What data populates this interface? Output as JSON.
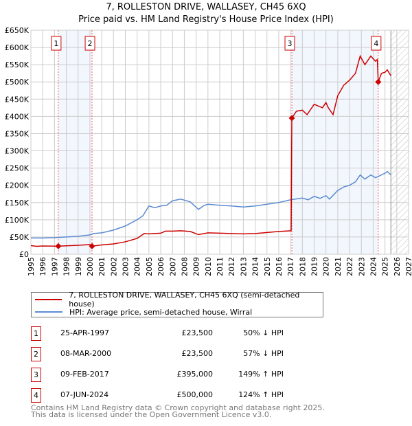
{
  "title": "7, ROLLESTON DRIVE, WALLASEY, CH45 6XQ",
  "subtitle": "Price paid vs. HM Land Registry's House Price Index (HPI)",
  "chart_data": {
    "type": "line",
    "title": "7, ROLLESTON DRIVE, WALLASEY, CH45 6XQ - Price paid vs. HM Land Registry's House Price Index (HPI)",
    "xlim": [
      1995,
      2027
    ],
    "ylim": [
      0,
      650000
    ],
    "x_ticks": [
      "1995",
      "1996",
      "1997",
      "1998",
      "1999",
      "2000",
      "2001",
      "2002",
      "2003",
      "2004",
      "2005",
      "2006",
      "2007",
      "2008",
      "2009",
      "2010",
      "2011",
      "2012",
      "2013",
      "2014",
      "2015",
      "2016",
      "2017",
      "2018",
      "2019",
      "2020",
      "2021",
      "2022",
      "2023",
      "2024",
      "2025",
      "2026",
      "2027"
    ],
    "y_ticks": [
      {
        "v": 0,
        "label": "£0"
      },
      {
        "v": 50000,
        "label": "£50K"
      },
      {
        "v": 100000,
        "label": "£100K"
      },
      {
        "v": 150000,
        "label": "£150K"
      },
      {
        "v": 200000,
        "label": "£200K"
      },
      {
        "v": 250000,
        "label": "£250K"
      },
      {
        "v": 300000,
        "label": "£300K"
      },
      {
        "v": 350000,
        "label": "£350K"
      },
      {
        "v": 400000,
        "label": "£400K"
      },
      {
        "v": 450000,
        "label": "£450K"
      },
      {
        "v": 500000,
        "label": "£500K"
      },
      {
        "v": 550000,
        "label": "£550K"
      },
      {
        "v": 600000,
        "label": "£600K"
      },
      {
        "v": 650000,
        "label": "£650K"
      }
    ],
    "grid": true,
    "shaded_periods": [
      [
        1997.32,
        2000.18
      ],
      [
        2017.11,
        2024.43
      ]
    ],
    "forecast_from": 2025.5,
    "series": [
      {
        "name": "7, ROLLESTON DRIVE, WALLASEY, CH45 6XQ (semi-detached house)",
        "color": "#cc0000",
        "x": [
          1995,
          1995.5,
          1996,
          1997,
          1997.32,
          1998,
          1999,
          2000,
          2000.18,
          2001,
          2002,
          2003,
          2004,
          2004.6,
          2005,
          2006,
          2006.4,
          2007,
          2007.7,
          2008.5,
          2009.2,
          2009.7,
          2010,
          2011,
          2012,
          2013,
          2014,
          2015,
          2016,
          2017.05,
          2017.11,
          2017.5,
          2018,
          2018.4,
          2019,
          2019.7,
          2020,
          2020.2,
          2020.6,
          2021,
          2021.5,
          2022,
          2022.5,
          2022.9,
          2023.3,
          2023.8,
          2024.2,
          2024.35,
          2024.43,
          2024.7,
          2025,
          2025.2,
          2025.5
        ],
        "y": [
          25000,
          23000,
          24000,
          23500,
          23500,
          24500,
          26000,
          28000,
          23500,
          27000,
          30000,
          36000,
          46000,
          60000,
          59000,
          61000,
          67000,
          67000,
          68000,
          66000,
          57000,
          60000,
          62000,
          61000,
          60000,
          59000,
          60000,
          63000,
          66000,
          68000,
          395000,
          415000,
          418000,
          405000,
          435000,
          425000,
          440000,
          425000,
          405000,
          460000,
          490000,
          505000,
          525000,
          575000,
          550000,
          575000,
          560000,
          565000,
          500000,
          525000,
          528000,
          535000,
          518000
        ]
      },
      {
        "name": "HPI: Average price, semi-detached house, Wirral",
        "color": "#5b8bd0",
        "x": [
          1995,
          1996,
          1997,
          1998,
          1999,
          2000,
          2000.3,
          2001,
          2002,
          2003,
          2004,
          2004.5,
          2005,
          2005.5,
          2006,
          2006.5,
          2007,
          2007.7,
          2008.5,
          2009.2,
          2009.7,
          2010,
          2011,
          2012,
          2013,
          2014,
          2015,
          2016,
          2017,
          2018,
          2018.5,
          2019,
          2019.5,
          2020,
          2020.3,
          2021,
          2021.5,
          2022,
          2022.5,
          2022.9,
          2023.3,
          2023.8,
          2024.2,
          2024.5,
          2025,
          2025.2,
          2025.5
        ],
        "y": [
          47000,
          47000,
          48000,
          50000,
          52000,
          56000,
          60000,
          62000,
          70000,
          82000,
          100000,
          112000,
          140000,
          135000,
          140000,
          142000,
          155000,
          160000,
          152000,
          130000,
          142000,
          145000,
          142000,
          140000,
          137000,
          140000,
          145000,
          150000,
          158000,
          163000,
          158000,
          168000,
          162000,
          170000,
          160000,
          185000,
          195000,
          200000,
          210000,
          230000,
          218000,
          230000,
          222000,
          227000,
          235000,
          240000,
          230000
        ]
      }
    ],
    "annotations": [
      {
        "label": "1",
        "x": 1997.32,
        "y": 23500
      },
      {
        "label": "2",
        "x": 2000.18,
        "y": 23500
      },
      {
        "label": "3",
        "x": 2017.11,
        "y": 395000
      },
      {
        "label": "4",
        "x": 2024.43,
        "y": 500000
      }
    ]
  },
  "legend": {
    "property": "7, ROLLESTON DRIVE, WALLASEY, CH45 6XQ (semi-detached house)",
    "hpi": "HPI: Average price, semi-detached house, Wirral"
  },
  "transactions": [
    {
      "n": "1",
      "date": "25-APR-1997",
      "price": "£23,500",
      "hpi": "50% ↓ HPI"
    },
    {
      "n": "2",
      "date": "08-MAR-2000",
      "price": "£23,500",
      "hpi": "57% ↓ HPI"
    },
    {
      "n": "3",
      "date": "09-FEB-2017",
      "price": "£395,000",
      "hpi": "149% ↑ HPI"
    },
    {
      "n": "4",
      "date": "07-JUN-2024",
      "price": "£500,000",
      "hpi": "124% ↑ HPI"
    }
  ],
  "footer": [
    "Contains HM Land Registry data © Crown copyright and database right 2025.",
    "This data is licensed under the Open Government Licence v3.0."
  ]
}
